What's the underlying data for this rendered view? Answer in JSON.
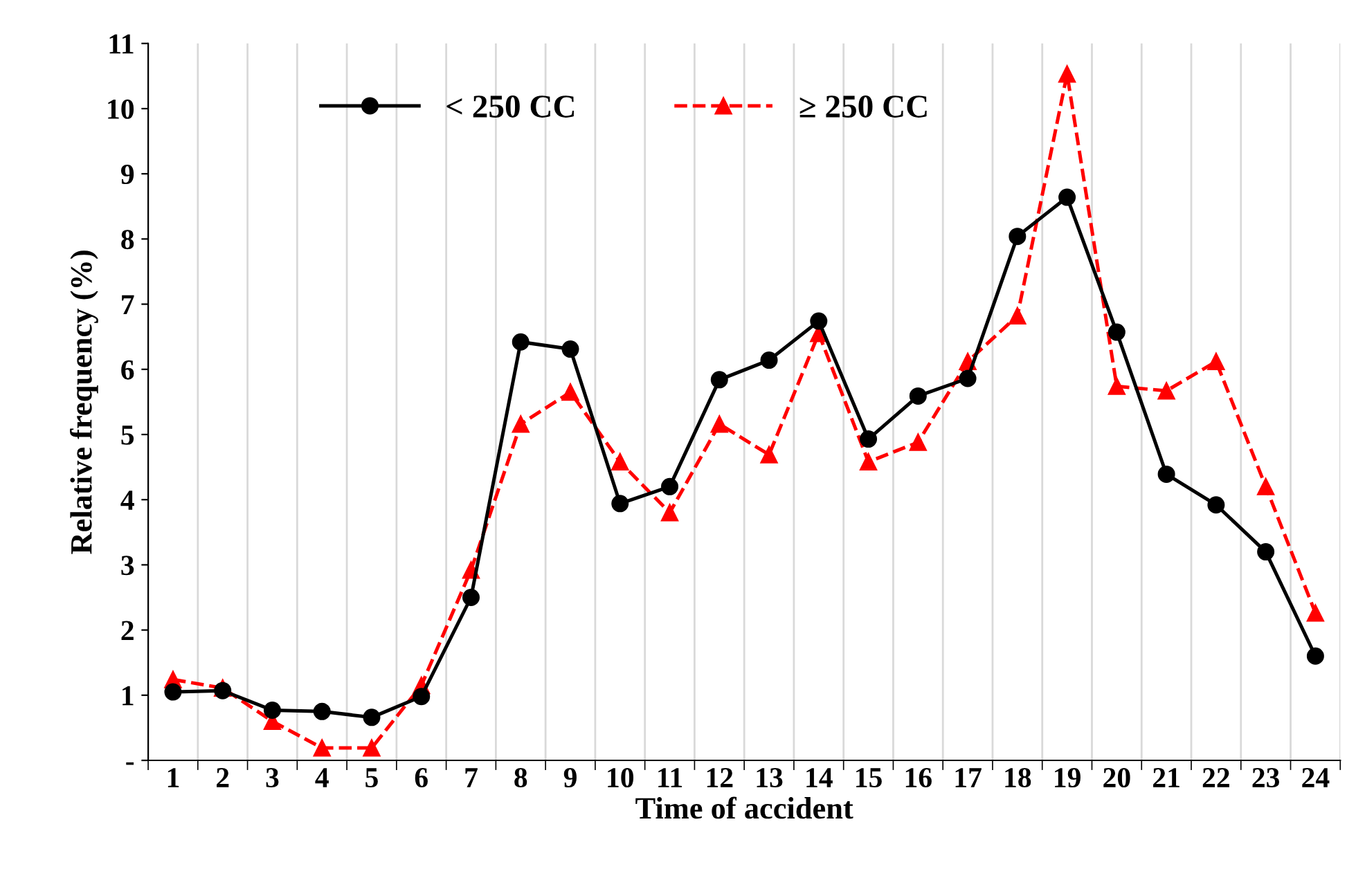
{
  "chart_data": {
    "type": "line",
    "xlabel": "Time of accident",
    "ylabel": "Relative frequency (%)",
    "categories": [
      "1",
      "2",
      "3",
      "4",
      "5",
      "6",
      "7",
      "8",
      "9",
      "10",
      "11",
      "12",
      "13",
      "14",
      "15",
      "16",
      "17",
      "18",
      "19",
      "20",
      "21",
      "22",
      "23",
      "24"
    ],
    "series": [
      {
        "name": "< 250 CC",
        "color": "#000000",
        "marker": "circle",
        "line_style": "solid",
        "values": [
          1.05,
          1.07,
          0.77,
          0.75,
          0.66,
          0.98,
          2.5,
          6.42,
          6.31,
          3.94,
          4.2,
          5.84,
          6.14,
          6.74,
          4.93,
          5.59,
          5.86,
          8.04,
          8.64,
          6.57,
          4.39,
          3.92,
          3.2,
          1.6
        ]
      },
      {
        "name": "≥ 250 CC",
        "color": "#ff0000",
        "marker": "triangle",
        "line_style": "dashed",
        "values": [
          1.24,
          1.11,
          0.6,
          0.19,
          0.19,
          1.15,
          2.92,
          5.16,
          5.65,
          4.58,
          3.8,
          5.16,
          4.69,
          6.55,
          4.58,
          4.88,
          6.12,
          6.82,
          10.53,
          5.74,
          5.67,
          6.12,
          4.2,
          2.26
        ]
      }
    ],
    "ylim": [
      0,
      11
    ],
    "yticks": [
      {
        "value": 0,
        "label": "-"
      },
      1,
      2,
      3,
      4,
      5,
      6,
      7,
      8,
      9,
      10,
      11
    ],
    "grid": "x",
    "legend": "top"
  }
}
